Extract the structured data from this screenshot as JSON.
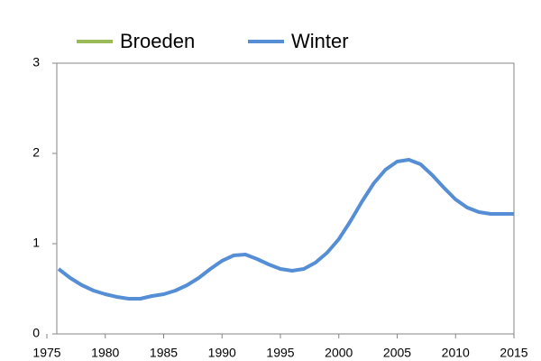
{
  "chart_data": {
    "type": "line",
    "x": [
      1976,
      1977,
      1978,
      1979,
      1980,
      1981,
      1982,
      1983,
      1984,
      1985,
      1986,
      1987,
      1988,
      1989,
      1990,
      1991,
      1992,
      1993,
      1994,
      1995,
      1996,
      1997,
      1998,
      1999,
      2000,
      2001,
      2002,
      2003,
      2004,
      2005,
      2006,
      2007,
      2008,
      2009,
      2010,
      2011,
      2012,
      2013,
      2014,
      2015
    ],
    "series": [
      {
        "name": "Broeden",
        "color": "#9bbb59",
        "values": [
          null,
          null,
          null,
          null,
          null,
          null,
          null,
          null,
          null,
          null,
          null,
          null,
          null,
          null,
          null,
          null,
          null,
          null,
          null,
          null,
          null,
          null,
          null,
          null,
          null,
          null,
          null,
          null,
          null,
          null,
          null,
          null,
          null,
          null,
          null,
          null,
          null,
          null,
          null,
          null
        ]
      },
      {
        "name": "Winter",
        "color": "#558ed5",
        "values": [
          0.72,
          0.62,
          0.54,
          0.48,
          0.44,
          0.41,
          0.39,
          0.39,
          0.42,
          0.44,
          0.48,
          0.54,
          0.62,
          0.72,
          0.81,
          0.87,
          0.88,
          0.83,
          0.77,
          0.72,
          0.7,
          0.72,
          0.79,
          0.9,
          1.05,
          1.25,
          1.47,
          1.67,
          1.82,
          1.91,
          1.93,
          1.88,
          1.76,
          1.62,
          1.49,
          1.4,
          1.35,
          1.33,
          1.33,
          1.33
        ]
      }
    ],
    "xlim": [
      1975,
      2015
    ],
    "xticks": [
      1975,
      1980,
      1985,
      1990,
      1995,
      2000,
      2005,
      2010,
      2015
    ],
    "ylim": [
      0,
      3
    ],
    "yticks": [
      0,
      1,
      2,
      3
    ]
  }
}
